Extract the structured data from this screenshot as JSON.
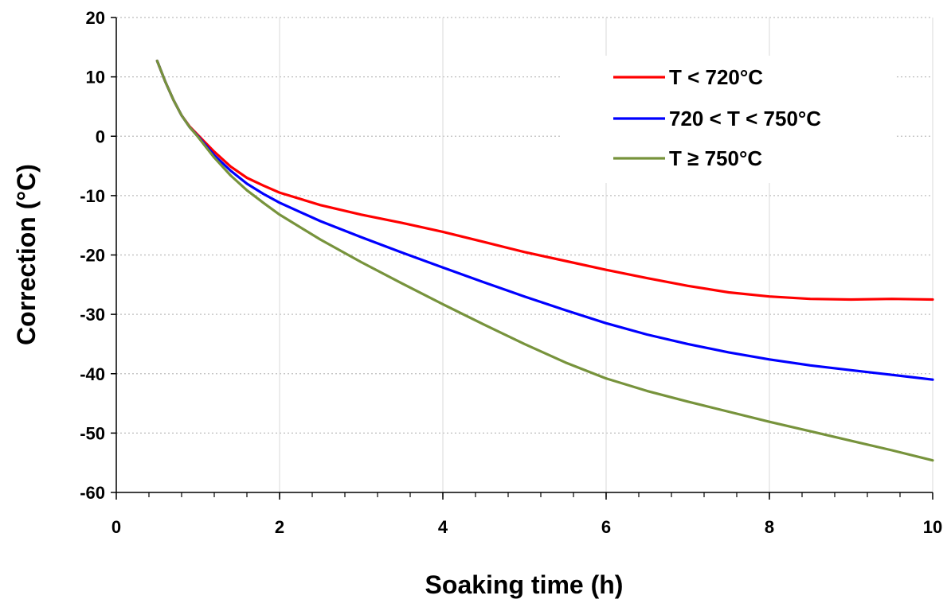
{
  "chart_data": {
    "type": "line",
    "title": "",
    "xlabel": "Soaking time (h)",
    "ylabel": "Correction (°C)",
    "xlim": [
      0,
      10
    ],
    "ylim": [
      -60,
      20
    ],
    "x_ticks": [
      0,
      2,
      4,
      6,
      8,
      10
    ],
    "x_tick_labels": [
      "0",
      "2",
      "4",
      "6",
      "8",
      "10"
    ],
    "y_ticks": [
      20,
      10,
      0,
      -10,
      -20,
      -30,
      -40,
      -50,
      -60
    ],
    "y_tick_labels": [
      "20",
      "10",
      "0",
      "-10",
      "-20",
      "-30",
      "-40",
      "-50",
      "-60"
    ],
    "x_minor_step": 0.4,
    "grid": true,
    "legend_position": "top-right",
    "series": [
      {
        "name": "T < 720°C",
        "color": "#ff0000",
        "x": [
          0.5,
          0.6,
          0.7,
          0.8,
          0.9,
          1.0,
          1.2,
          1.4,
          1.6,
          1.8,
          2.0,
          2.5,
          3.0,
          3.5,
          4.0,
          4.5,
          5.0,
          5.5,
          6.0,
          6.5,
          7.0,
          7.5,
          8.0,
          8.5,
          9.0,
          9.5,
          10.0
        ],
        "y": [
          12.7,
          9.2,
          6.1,
          3.5,
          1.6,
          0.2,
          -2.6,
          -5.1,
          -7.0,
          -8.3,
          -9.5,
          -11.6,
          -13.2,
          -14.6,
          -16.1,
          -17.8,
          -19.5,
          -21.0,
          -22.5,
          -23.9,
          -25.2,
          -26.3,
          -27.0,
          -27.4,
          -27.5,
          -27.4,
          -27.5
        ]
      },
      {
        "name": "720 < T < 750°C",
        "color": "#0000ff",
        "x": [
          0.5,
          0.6,
          0.7,
          0.8,
          0.9,
          1.0,
          1.2,
          1.4,
          1.6,
          1.8,
          2.0,
          2.5,
          3.0,
          3.5,
          4.0,
          4.5,
          5.0,
          5.5,
          6.0,
          6.5,
          7.0,
          7.5,
          8.0,
          8.5,
          9.0,
          9.5,
          10.0
        ],
        "y": [
          12.7,
          9.2,
          6.1,
          3.5,
          1.5,
          0.0,
          -3.2,
          -5.8,
          -8.0,
          -9.7,
          -11.2,
          -14.3,
          -17.0,
          -19.6,
          -22.1,
          -24.6,
          -27.0,
          -29.3,
          -31.5,
          -33.4,
          -35.0,
          -36.4,
          -37.6,
          -38.6,
          -39.4,
          -40.2,
          -41.0
        ]
      },
      {
        "name": "T ≥ 750°C",
        "color": "#77933c",
        "x": [
          0.5,
          0.6,
          0.7,
          0.8,
          0.9,
          1.0,
          1.2,
          1.4,
          1.6,
          1.8,
          2.0,
          2.5,
          3.0,
          3.5,
          4.0,
          4.5,
          5.0,
          5.5,
          6.0,
          6.5,
          7.0,
          7.5,
          8.0,
          8.5,
          9.0,
          9.5,
          10.0
        ],
        "y": [
          12.7,
          9.2,
          6.1,
          3.5,
          1.5,
          -0.1,
          -3.6,
          -6.6,
          -9.1,
          -11.2,
          -13.2,
          -17.4,
          -21.2,
          -24.8,
          -28.3,
          -31.7,
          -35.0,
          -38.1,
          -40.8,
          -42.9,
          -44.7,
          -46.4,
          -48.1,
          -49.7,
          -51.3,
          -52.9,
          -54.6
        ]
      }
    ]
  }
}
